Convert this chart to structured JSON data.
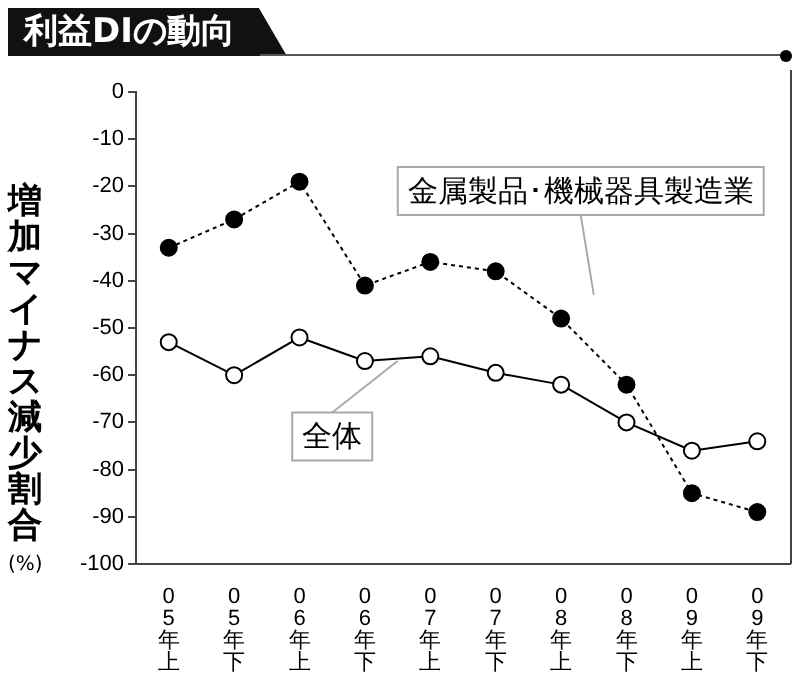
{
  "chart_data": {
    "type": "line",
    "title": "利益DIの動向",
    "ylabel": "増加マイナス減少割合(%)",
    "categories": [
      "05年上",
      "05年下",
      "06年上",
      "06年下",
      "07年上",
      "07年下",
      "08年上",
      "08年下",
      "09年上",
      "09年下"
    ],
    "series": [
      {
        "name": "金属製品･機械器具製造業",
        "color": "#000000",
        "line_style": "dotted",
        "values": [
          -33,
          -27,
          -19,
          -41,
          -36,
          -38,
          -48,
          -62,
          -85,
          -89
        ]
      },
      {
        "name": "全体",
        "color": "#000000",
        "line_style": "solid",
        "values": [
          -53,
          -60,
          -52,
          -57,
          -56,
          -59.5,
          -62,
          -70,
          -76,
          -74
        ]
      }
    ],
    "ylim": [
      -100,
      0
    ],
    "yticks": [
      0,
      -10,
      -20,
      -30,
      -40,
      -50,
      -60,
      -70,
      -80,
      -90,
      -100
    ],
    "grid": false,
    "legend": false,
    "marker": "circle"
  }
}
